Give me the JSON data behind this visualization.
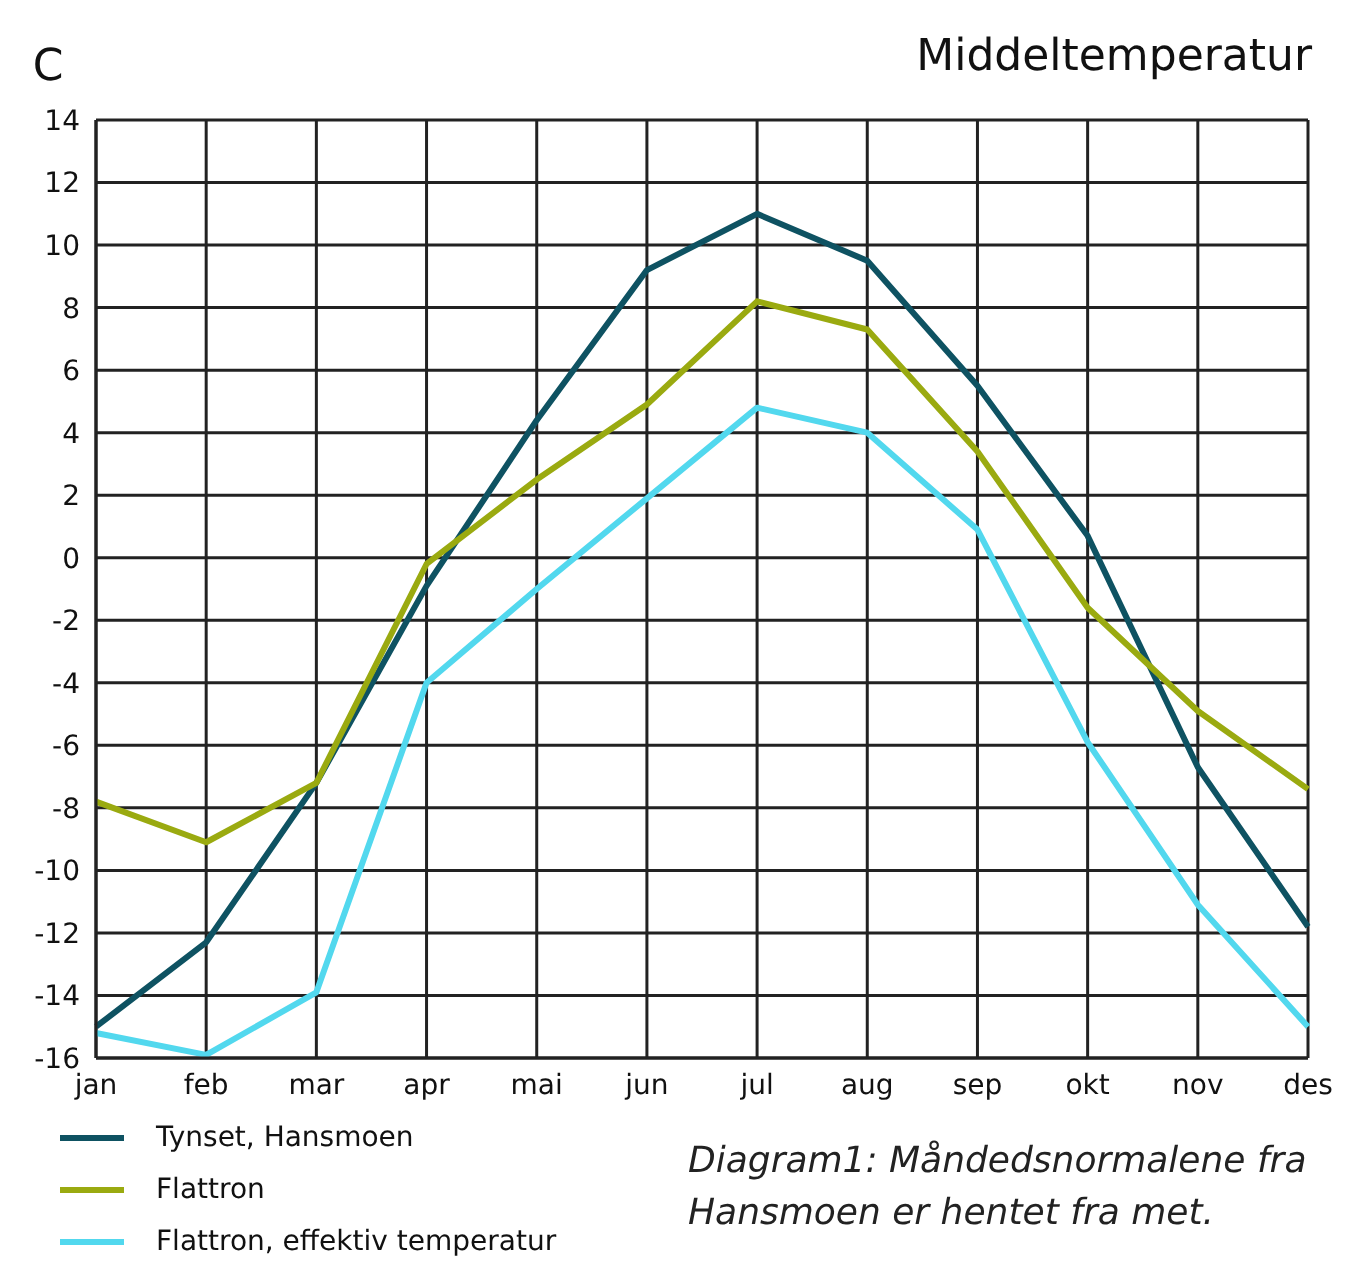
{
  "chart_data": {
    "type": "line",
    "title": "Middeltemperatur",
    "ylabel": "C",
    "categories": [
      "jan",
      "feb",
      "mar",
      "apr",
      "mai",
      "jun",
      "jul",
      "aug",
      "sep",
      "okt",
      "nov",
      "des"
    ],
    "series": [
      {
        "name": "Tynset, Hansmoen",
        "color": "#0e5262",
        "values": [
          -15,
          -12.3,
          -7.2,
          -0.9,
          4.4,
          9.2,
          11,
          9.5,
          5.5,
          0.7,
          -6.7,
          -11.8
        ]
      },
      {
        "name": "Flattron",
        "color": "#9aaa10",
        "values": [
          -7.8,
          -9.1,
          -7.2,
          -0.2,
          2.5,
          4.9,
          8.2,
          7.3,
          3.4,
          -1.6,
          -4.9,
          -7.4
        ]
      },
      {
        "name": "Flattron, effektiv temperatur",
        "color": "#52d8ee",
        "values": [
          -15.2,
          -15.9,
          -13.9,
          -4,
          -1,
          1.9,
          4.8,
          4,
          0.9,
          -5.9,
          -11.1,
          -15
        ]
      }
    ],
    "ylim": [
      -16,
      14
    ],
    "yticks": [
      -16,
      -14,
      -12,
      -10,
      -8,
      -6,
      -4,
      -2,
      0,
      2,
      4,
      6,
      8,
      10,
      12,
      14
    ],
    "grid": true,
    "legend": "bottom left",
    "marker": "none",
    "line_style": "solid",
    "annotations": [
      "Diagram1: Måndedsnormalene fra Hansmoen er hentet fra met."
    ]
  }
}
